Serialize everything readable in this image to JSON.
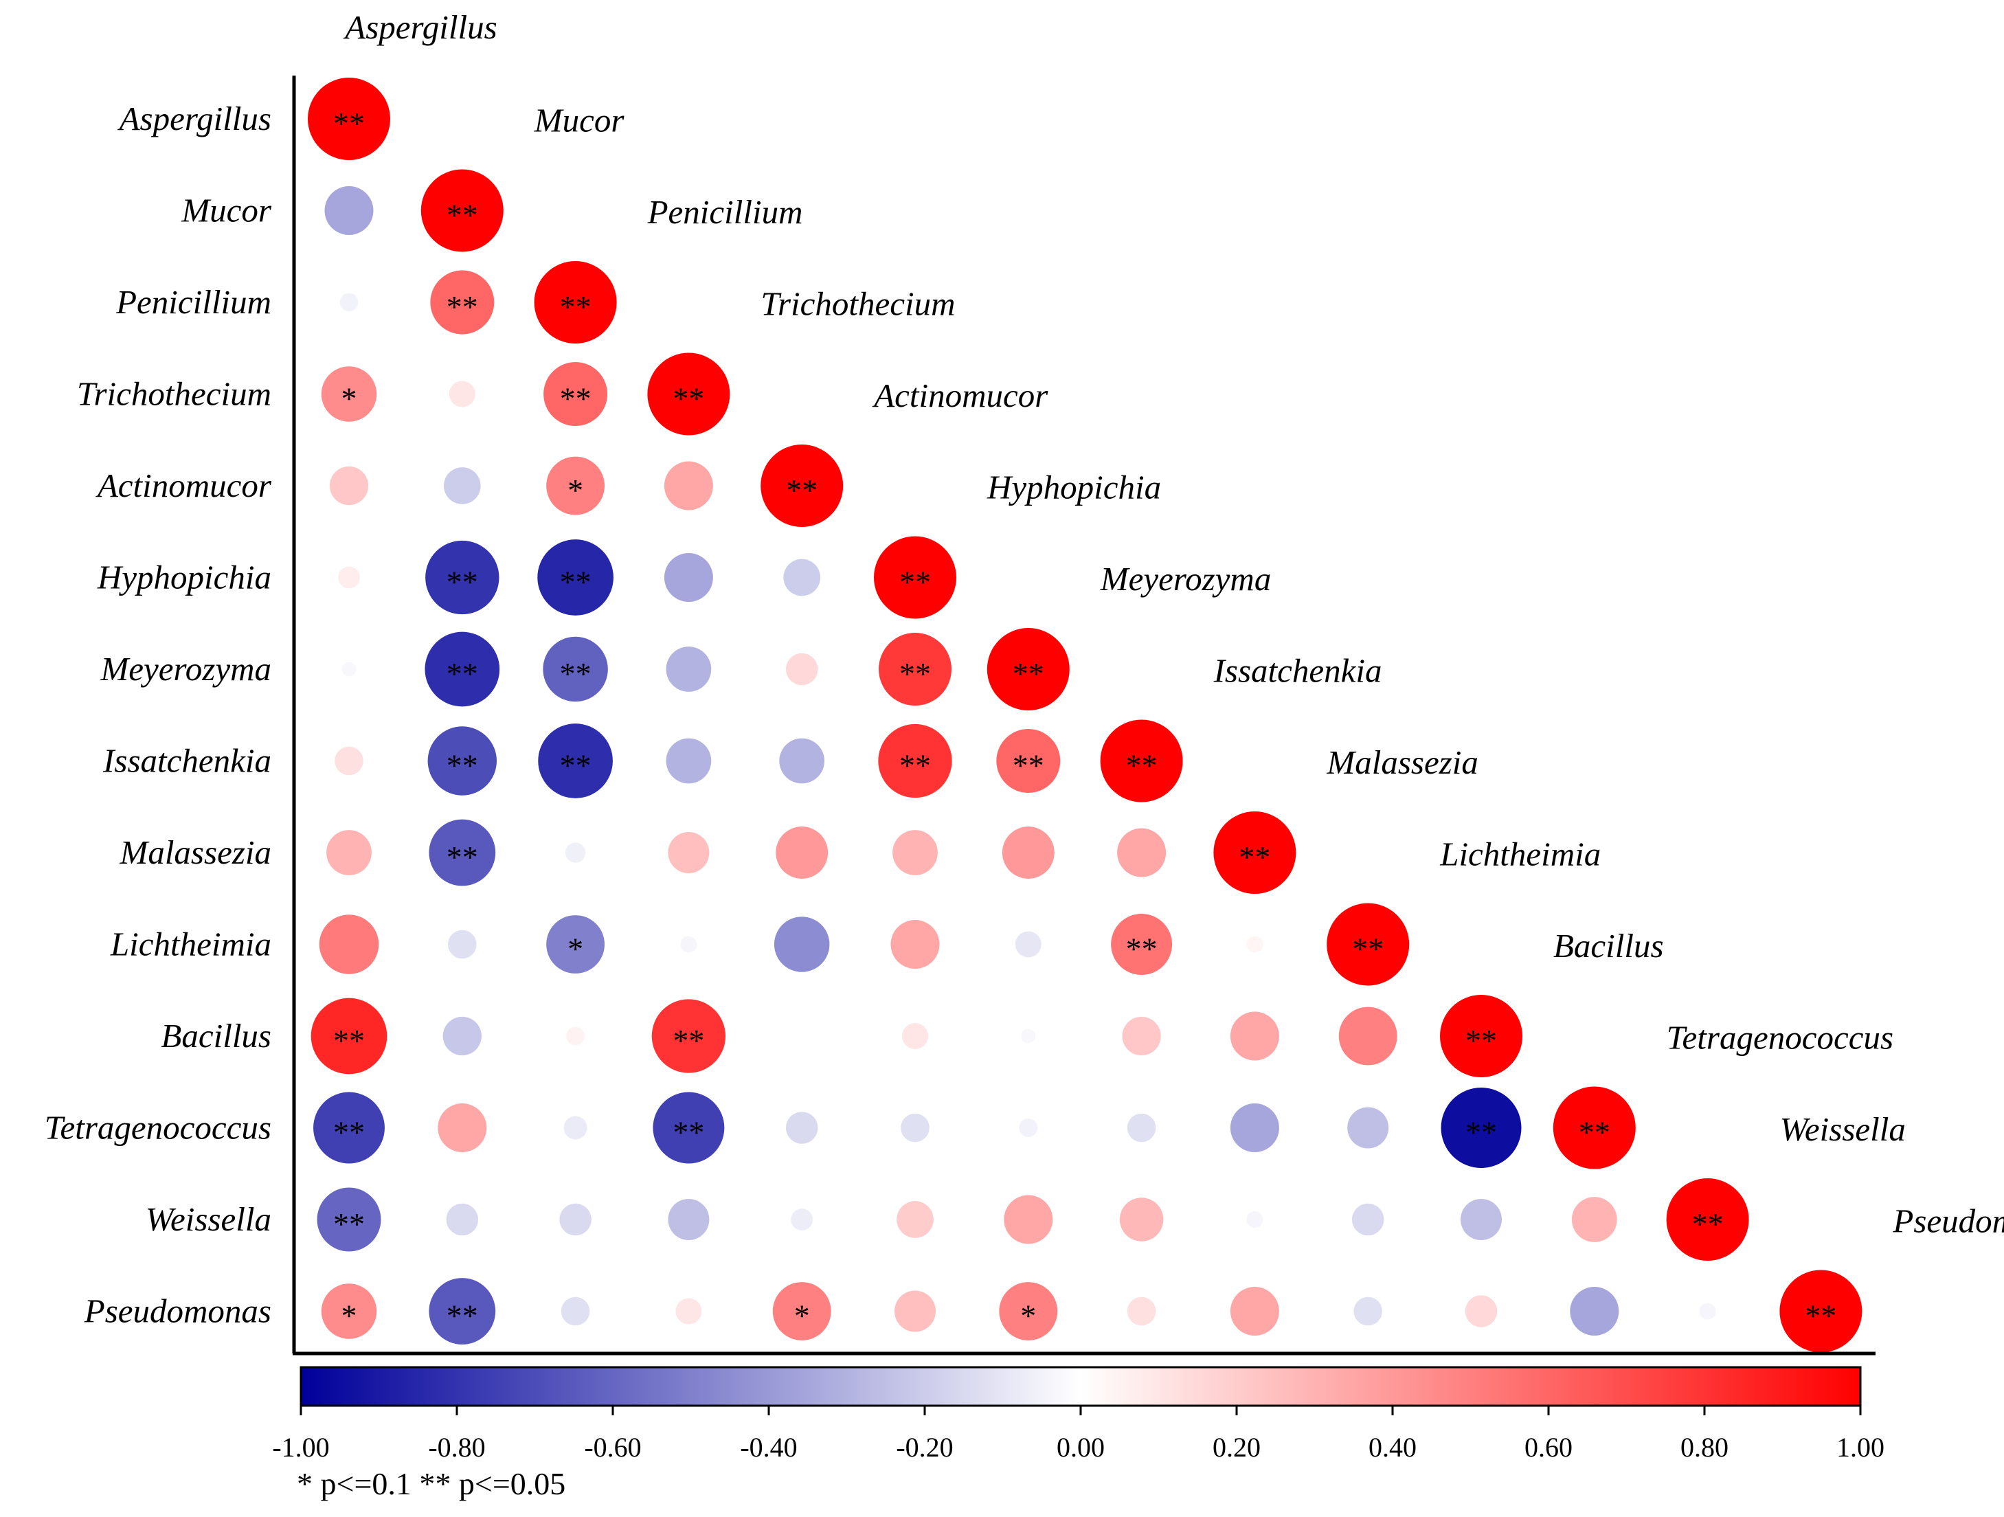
{
  "chart_data": {
    "type": "heatmap",
    "variant": "lower-triangle correlation matrix (circle size and color encode correlation)",
    "variables": [
      "Aspergillus",
      "Mucor",
      "Penicillium",
      "Trichothecium",
      "Actinomucor",
      "Hyphopichia",
      "Meyerozyma",
      "Issatchenkia",
      "Malassezia",
      "Lichtheimia",
      "Bacillus",
      "Tetragenococcus",
      "Weissella",
      "Pseudomonas"
    ],
    "cells": [
      {
        "row": 0,
        "col": 0,
        "r": 1.0,
        "sig": "**"
      },
      {
        "row": 1,
        "col": 0,
        "r": -0.35,
        "sig": ""
      },
      {
        "row": 1,
        "col": 1,
        "r": 1.0,
        "sig": "**"
      },
      {
        "row": 2,
        "col": 0,
        "r": -0.05,
        "sig": ""
      },
      {
        "row": 2,
        "col": 1,
        "r": 0.6,
        "sig": "**"
      },
      {
        "row": 2,
        "col": 2,
        "r": 1.0,
        "sig": "**"
      },
      {
        "row": 3,
        "col": 0,
        "r": 0.45,
        "sig": "*"
      },
      {
        "row": 3,
        "col": 1,
        "r": 0.1,
        "sig": ""
      },
      {
        "row": 3,
        "col": 2,
        "r": 0.6,
        "sig": "**"
      },
      {
        "row": 3,
        "col": 3,
        "r": 1.0,
        "sig": "**"
      },
      {
        "row": 4,
        "col": 0,
        "r": 0.22,
        "sig": ""
      },
      {
        "row": 4,
        "col": 1,
        "r": -0.2,
        "sig": ""
      },
      {
        "row": 4,
        "col": 2,
        "r": 0.5,
        "sig": "*"
      },
      {
        "row": 4,
        "col": 3,
        "r": 0.35,
        "sig": ""
      },
      {
        "row": 4,
        "col": 4,
        "r": 1.0,
        "sig": "**"
      },
      {
        "row": 5,
        "col": 0,
        "r": 0.07,
        "sig": ""
      },
      {
        "row": 5,
        "col": 1,
        "r": -0.8,
        "sig": "**"
      },
      {
        "row": 5,
        "col": 2,
        "r": -0.85,
        "sig": "**"
      },
      {
        "row": 5,
        "col": 3,
        "r": -0.35,
        "sig": ""
      },
      {
        "row": 5,
        "col": 4,
        "r": -0.2,
        "sig": ""
      },
      {
        "row": 5,
        "col": 5,
        "r": 1.0,
        "sig": "**"
      },
      {
        "row": 6,
        "col": 0,
        "r": -0.03,
        "sig": ""
      },
      {
        "row": 6,
        "col": 1,
        "r": -0.82,
        "sig": "**"
      },
      {
        "row": 6,
        "col": 2,
        "r": -0.62,
        "sig": "**"
      },
      {
        "row": 6,
        "col": 3,
        "r": -0.3,
        "sig": ""
      },
      {
        "row": 6,
        "col": 4,
        "r": 0.15,
        "sig": ""
      },
      {
        "row": 6,
        "col": 5,
        "r": 0.78,
        "sig": "**"
      },
      {
        "row": 6,
        "col": 6,
        "r": 1.0,
        "sig": "**"
      },
      {
        "row": 7,
        "col": 0,
        "r": 0.12,
        "sig": ""
      },
      {
        "row": 7,
        "col": 1,
        "r": -0.7,
        "sig": "**"
      },
      {
        "row": 7,
        "col": 2,
        "r": -0.82,
        "sig": "**"
      },
      {
        "row": 7,
        "col": 3,
        "r": -0.3,
        "sig": ""
      },
      {
        "row": 7,
        "col": 4,
        "r": -0.3,
        "sig": ""
      },
      {
        "row": 7,
        "col": 5,
        "r": 0.8,
        "sig": "**"
      },
      {
        "row": 7,
        "col": 6,
        "r": 0.6,
        "sig": "**"
      },
      {
        "row": 7,
        "col": 7,
        "r": 1.0,
        "sig": "**"
      },
      {
        "row": 8,
        "col": 0,
        "r": 0.3,
        "sig": ""
      },
      {
        "row": 8,
        "col": 1,
        "r": -0.65,
        "sig": "**"
      },
      {
        "row": 8,
        "col": 2,
        "r": -0.06,
        "sig": ""
      },
      {
        "row": 8,
        "col": 3,
        "r": 0.25,
        "sig": ""
      },
      {
        "row": 8,
        "col": 4,
        "r": 0.4,
        "sig": ""
      },
      {
        "row": 8,
        "col": 5,
        "r": 0.3,
        "sig": ""
      },
      {
        "row": 8,
        "col": 6,
        "r": 0.4,
        "sig": ""
      },
      {
        "row": 8,
        "col": 7,
        "r": 0.35,
        "sig": ""
      },
      {
        "row": 8,
        "col": 8,
        "r": 1.0,
        "sig": "**"
      },
      {
        "row": 9,
        "col": 0,
        "r": 0.52,
        "sig": ""
      },
      {
        "row": 9,
        "col": 1,
        "r": -0.12,
        "sig": ""
      },
      {
        "row": 9,
        "col": 2,
        "r": -0.5,
        "sig": "*"
      },
      {
        "row": 9,
        "col": 3,
        "r": -0.04,
        "sig": ""
      },
      {
        "row": 9,
        "col": 4,
        "r": -0.45,
        "sig": ""
      },
      {
        "row": 9,
        "col": 5,
        "r": 0.35,
        "sig": ""
      },
      {
        "row": 9,
        "col": 6,
        "r": -0.1,
        "sig": ""
      },
      {
        "row": 9,
        "col": 7,
        "r": 0.55,
        "sig": "**"
      },
      {
        "row": 9,
        "col": 8,
        "r": 0.04,
        "sig": ""
      },
      {
        "row": 9,
        "col": 9,
        "r": 1.0,
        "sig": "**"
      },
      {
        "row": 10,
        "col": 0,
        "r": 0.85,
        "sig": "**"
      },
      {
        "row": 10,
        "col": 1,
        "r": -0.22,
        "sig": ""
      },
      {
        "row": 10,
        "col": 2,
        "r": 0.05,
        "sig": ""
      },
      {
        "row": 10,
        "col": 3,
        "r": 0.8,
        "sig": "**"
      },
      {
        "row": 10,
        "col": 4,
        "r": 0.0,
        "sig": ""
      },
      {
        "row": 10,
        "col": 5,
        "r": 0.1,
        "sig": ""
      },
      {
        "row": 10,
        "col": 6,
        "r": -0.03,
        "sig": ""
      },
      {
        "row": 10,
        "col": 7,
        "r": 0.22,
        "sig": ""
      },
      {
        "row": 10,
        "col": 8,
        "r": 0.35,
        "sig": ""
      },
      {
        "row": 10,
        "col": 9,
        "r": 0.5,
        "sig": ""
      },
      {
        "row": 10,
        "col": 10,
        "r": 1.0,
        "sig": "**"
      },
      {
        "row": 11,
        "col": 0,
        "r": -0.75,
        "sig": "**"
      },
      {
        "row": 11,
        "col": 1,
        "r": 0.35,
        "sig": ""
      },
      {
        "row": 11,
        "col": 2,
        "r": -0.08,
        "sig": ""
      },
      {
        "row": 11,
        "col": 3,
        "r": -0.75,
        "sig": "**"
      },
      {
        "row": 11,
        "col": 4,
        "r": -0.15,
        "sig": ""
      },
      {
        "row": 11,
        "col": 5,
        "r": -0.12,
        "sig": ""
      },
      {
        "row": 11,
        "col": 6,
        "r": -0.05,
        "sig": ""
      },
      {
        "row": 11,
        "col": 7,
        "r": -0.12,
        "sig": ""
      },
      {
        "row": 11,
        "col": 8,
        "r": -0.35,
        "sig": ""
      },
      {
        "row": 11,
        "col": 9,
        "r": -0.25,
        "sig": ""
      },
      {
        "row": 11,
        "col": 10,
        "r": -0.95,
        "sig": "**"
      },
      {
        "row": 11,
        "col": 11,
        "r": 1.0,
        "sig": "**"
      },
      {
        "row": 12,
        "col": 0,
        "r": -0.6,
        "sig": "**"
      },
      {
        "row": 12,
        "col": 1,
        "r": -0.15,
        "sig": ""
      },
      {
        "row": 12,
        "col": 2,
        "r": -0.15,
        "sig": ""
      },
      {
        "row": 12,
        "col": 3,
        "r": -0.25,
        "sig": ""
      },
      {
        "row": 12,
        "col": 4,
        "r": -0.07,
        "sig": ""
      },
      {
        "row": 12,
        "col": 5,
        "r": 0.2,
        "sig": ""
      },
      {
        "row": 12,
        "col": 6,
        "r": 0.35,
        "sig": ""
      },
      {
        "row": 12,
        "col": 7,
        "r": 0.28,
        "sig": ""
      },
      {
        "row": 12,
        "col": 8,
        "r": -0.04,
        "sig": ""
      },
      {
        "row": 12,
        "col": 9,
        "r": -0.15,
        "sig": ""
      },
      {
        "row": 12,
        "col": 10,
        "r": -0.25,
        "sig": ""
      },
      {
        "row": 12,
        "col": 11,
        "r": 0.3,
        "sig": ""
      },
      {
        "row": 12,
        "col": 12,
        "r": 1.0,
        "sig": "**"
      },
      {
        "row": 13,
        "col": 0,
        "r": 0.45,
        "sig": "*"
      },
      {
        "row": 13,
        "col": 1,
        "r": -0.65,
        "sig": "**"
      },
      {
        "row": 13,
        "col": 2,
        "r": -0.12,
        "sig": ""
      },
      {
        "row": 13,
        "col": 3,
        "r": 0.1,
        "sig": ""
      },
      {
        "row": 13,
        "col": 4,
        "r": 0.5,
        "sig": "*"
      },
      {
        "row": 13,
        "col": 5,
        "r": 0.25,
        "sig": ""
      },
      {
        "row": 13,
        "col": 6,
        "r": 0.5,
        "sig": "*"
      },
      {
        "row": 13,
        "col": 7,
        "r": 0.12,
        "sig": ""
      },
      {
        "row": 13,
        "col": 8,
        "r": 0.35,
        "sig": ""
      },
      {
        "row": 13,
        "col": 9,
        "r": -0.12,
        "sig": ""
      },
      {
        "row": 13,
        "col": 10,
        "r": 0.15,
        "sig": ""
      },
      {
        "row": 13,
        "col": 11,
        "r": -0.35,
        "sig": ""
      },
      {
        "row": 13,
        "col": 12,
        "r": -0.04,
        "sig": ""
      },
      {
        "row": 13,
        "col": 13,
        "r": 1.0,
        "sig": "**"
      }
    ],
    "colorbar": {
      "range": [
        -1.0,
        1.0
      ],
      "ticks": [
        "-1.00",
        "-0.80",
        "-0.60",
        "-0.40",
        "-0.20",
        "0.00",
        "0.20",
        "0.40",
        "0.60",
        "0.80",
        "1.00"
      ],
      "low_color": "#00009a",
      "mid_color": "#ffffff",
      "high_color": "#ff0000"
    },
    "significance_note": "* p<=0.1  ** p<=0.05"
  }
}
